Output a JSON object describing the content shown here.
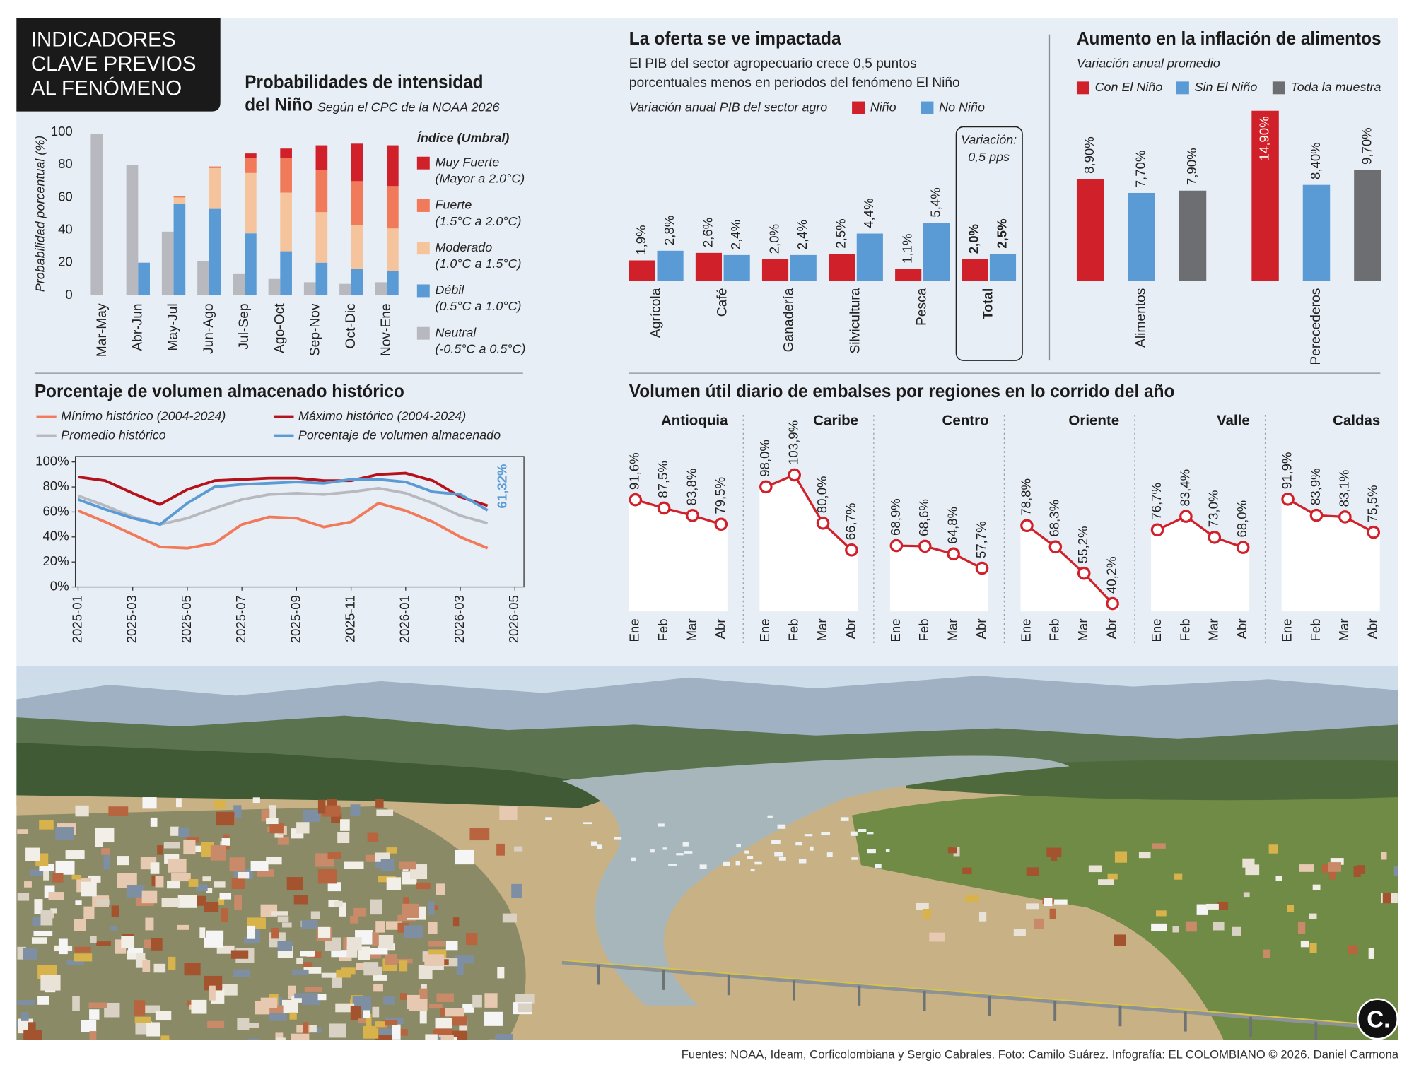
{
  "header": {
    "title": [
      "INDICADORES",
      "CLAVE PREVIOS",
      "AL FENÓMENO"
    ]
  },
  "chart_data": [
    {
      "type": "stacked_bar",
      "title": [
        "Probabilidades de intensidad",
        "del Niño"
      ],
      "subtitle": "Según el CPC de la NOAA 2026",
      "y_label": "Probabilidad porcentual (%)",
      "legend_title": "Índice (Umbral)",
      "categories": [
        "Mar-May",
        "Abr-Jun",
        "May-Jul",
        "Jun-Ago",
        "Jul-Sep",
        "Ago-Oct",
        "Sep-Nov",
        "Oct-Dic",
        "Nov-Ene"
      ],
      "ylim": [
        0,
        100
      ],
      "yticks": [
        0,
        20,
        40,
        60,
        80,
        100
      ],
      "grid": false,
      "series": [
        {
          "name": "Neutral",
          "range": "(-0.5°C a 0.5°C)",
          "color": "#b7b9bf",
          "stack": "left",
          "values": [
            99,
            80,
            39,
            21,
            13,
            10,
            8,
            7,
            8
          ]
        },
        {
          "name": "Débil",
          "range": "(0.5°C a 1.0°C)",
          "color": "#5b9bd5",
          "stack": "right",
          "values": [
            0,
            20,
            56,
            53,
            38,
            27,
            20,
            16,
            15
          ]
        },
        {
          "name": "Moderado",
          "range": "(1.0°C a 1.5°C)",
          "color": "#f6c49c",
          "stack": "right",
          "values": [
            0,
            0,
            4,
            25,
            37,
            36,
            31,
            27,
            26
          ]
        },
        {
          "name": "Fuerte",
          "range": "(1.5°C a 2.0°C)",
          "color": "#f07a5a",
          "stack": "right",
          "values": [
            0,
            0,
            1,
            1,
            9,
            21,
            26,
            27,
            26
          ]
        },
        {
          "name": "Muy Fuerte",
          "range": "(Mayor a 2.0°C)",
          "color": "#d0202a",
          "stack": "right",
          "values": [
            0,
            0,
            0,
            0,
            3,
            6,
            15,
            23,
            25
          ]
        }
      ]
    },
    {
      "type": "bar",
      "title": "La oferta se ve impactada",
      "subtitle": [
        "El PIB del sector agropecuario crece 0,5 puntos",
        "porcentuales menos en periodos del fenómeno El Niño"
      ],
      "legend_title": "Variación anual PIB del sector agro",
      "annotation": [
        "Variación:",
        "0,5 pps"
      ],
      "categories": [
        "Agrícola",
        "Café",
        "Ganadería",
        "Silvicultura",
        "Pesca",
        "Total"
      ],
      "series": [
        {
          "name": "Niño",
          "color": "#d0202a",
          "values": [
            1.9,
            2.6,
            2.0,
            2.5,
            1.1,
            2.0
          ],
          "value_labels": [
            "1,9%",
            "2,6%",
            "2,0%",
            "2,5%",
            "1,1%",
            "2,0%"
          ]
        },
        {
          "name": "No Niño",
          "color": "#5b9bd5",
          "values": [
            2.8,
            2.4,
            2.4,
            4.4,
            5.4,
            2.5
          ],
          "value_labels": [
            "2,8%",
            "2,4%",
            "2,4%",
            "4,4%",
            "5,4%",
            "2,5%"
          ]
        }
      ]
    },
    {
      "type": "bar",
      "title": "Aumento en la inflación de alimentos",
      "subtitle": "Variación anual promedio",
      "categories": [
        "Alimentos",
        "Perecederos"
      ],
      "series": [
        {
          "name": "Con El Niño",
          "color": "#d0202a",
          "values": [
            8.9,
            14.9
          ],
          "value_labels": [
            "8,90%",
            "14,90%"
          ]
        },
        {
          "name": "Sin El Niño",
          "color": "#5b9bd5",
          "values": [
            7.7,
            8.4
          ],
          "value_labels": [
            "7,70%",
            "8,40%"
          ]
        },
        {
          "name": "Toda la muestra",
          "color": "#6d6e71",
          "values": [
            7.9,
            9.7
          ],
          "value_labels": [
            "7,90%",
            "9,70%"
          ]
        }
      ]
    },
    {
      "type": "line",
      "title": "Porcentaje de volumen almacenado histórico",
      "x": [
        "2025-01",
        "2025-02",
        "2025-03",
        "2025-04",
        "2025-05",
        "2025-06",
        "2025-07",
        "2025-08",
        "2025-09",
        "2025-10",
        "2025-11",
        "2025-12",
        "2026-01",
        "2026-02",
        "2026-03",
        "2026-04"
      ],
      "xlim": [
        "2025-01",
        "2026-05"
      ],
      "xticks": [
        "2025-01",
        "2025-03",
        "2025-05",
        "2025-07",
        "2025-09",
        "2025-11",
        "2026-01",
        "2026-03",
        "2026-05"
      ],
      "ylim": [
        0,
        100
      ],
      "yticks": [
        {
          "value": 0,
          "label": "0%"
        },
        {
          "value": 20,
          "label": "20%"
        },
        {
          "value": 40,
          "label": "40%"
        },
        {
          "value": 60,
          "label": "60%"
        },
        {
          "value": 80,
          "label": "80%"
        },
        {
          "value": 100,
          "label": "100%"
        }
      ],
      "grid": false,
      "series": [
        {
          "name": "Mínimo histórico (2004-2024)",
          "color": "#f07a5a",
          "values": [
            61,
            52,
            42,
            32,
            31,
            35,
            50,
            56,
            55,
            48,
            52,
            67,
            61,
            52,
            40,
            31
          ]
        },
        {
          "name": "Máximo histórico (2004-2024)",
          "color": "#b5121b",
          "values": [
            88,
            85,
            75,
            66,
            78,
            85,
            86,
            87,
            87,
            85,
            85,
            90,
            91,
            85,
            72,
            65
          ]
        },
        {
          "name": "Promedio histórico",
          "color": "#b7b9bf",
          "values": [
            73,
            65,
            56,
            50,
            55,
            63,
            70,
            74,
            75,
            74,
            76,
            79,
            75,
            67,
            57,
            51
          ]
        },
        {
          "name": "Porcentaje de volumen almacenado",
          "color": "#5b9bd5",
          "values": [
            70,
            62,
            55,
            50,
            67,
            80,
            82,
            83,
            84,
            83,
            86,
            86,
            84,
            76,
            74,
            61.32
          ],
          "value_labels": [
            null,
            null,
            null,
            null,
            null,
            null,
            null,
            null,
            null,
            null,
            null,
            null,
            null,
            null,
            null,
            "61,32%"
          ]
        }
      ]
    },
    {
      "type": "area",
      "title": "Volumen útil diario de embalses por regiones en lo corrido del año",
      "categories": [
        "Ene",
        "Feb",
        "Mar",
        "Abr"
      ],
      "color": "#d0202a",
      "series": [
        {
          "name": "Antioquia",
          "values": [
            91.6,
            87.5,
            83.8,
            79.5
          ],
          "value_labels": [
            "91,6%",
            "87,5%",
            "83,8%",
            "79,5%"
          ]
        },
        {
          "name": "Caribe",
          "values": [
            98.0,
            103.9,
            80.0,
            66.7
          ],
          "value_labels": [
            "98,0%",
            "103,9%",
            "80,0%",
            "66,7%"
          ]
        },
        {
          "name": "Centro",
          "values": [
            68.9,
            68.6,
            64.8,
            57.7
          ],
          "value_labels": [
            "68,9%",
            "68,6%",
            "64,8%",
            "57,7%"
          ]
        },
        {
          "name": "Oriente",
          "values": [
            78.8,
            68.3,
            55.2,
            40.2
          ],
          "value_labels": [
            "78,8%",
            "68,3%",
            "55,2%",
            "40,2%"
          ]
        },
        {
          "name": "Valle",
          "values": [
            76.7,
            83.4,
            73.0,
            68.0
          ],
          "value_labels": [
            "76,7%",
            "83,4%",
            "73,0%",
            "68,0%"
          ]
        },
        {
          "name": "Caldas",
          "values": [
            91.9,
            83.9,
            83.1,
            75.5
          ],
          "value_labels": [
            "91,9%",
            "83,9%",
            "83,1%",
            "75,5%"
          ]
        }
      ]
    }
  ],
  "footer": "Fuentes: NOAA, Ideam, Corficolombiana y Sergio Cabrales. Foto: Camilo Suárez. Infografía: EL COLOMBIANO © 2026. Daniel Carmona",
  "logo": "C."
}
